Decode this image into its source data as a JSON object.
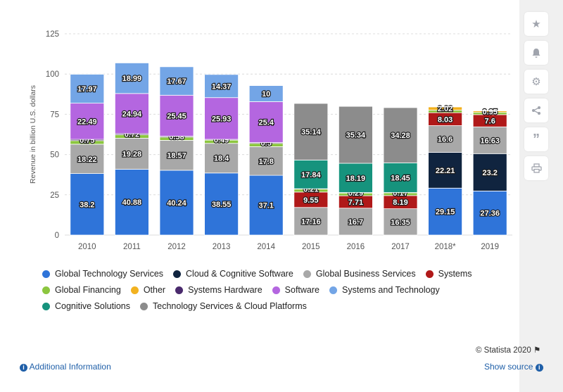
{
  "chart_data": {
    "type": "bar",
    "stacked": true,
    "ylabel": "Revenue in billion U.S. dollars",
    "ylim": [
      0,
      125
    ],
    "yticks": [
      "0",
      "25",
      "50",
      "75",
      "100",
      "125"
    ],
    "grid": true,
    "categories": [
      "2010",
      "2011",
      "2012",
      "2013",
      "2014",
      "2015",
      "2016",
      "2017",
      "2018*",
      "2019"
    ],
    "series": [
      {
        "name": "Global Technology Services",
        "color": "#2f74d9",
        "values": [
          38.2,
          40.88,
          40.24,
          38.55,
          37.1,
          null,
          null,
          null,
          29.15,
          27.36
        ]
      },
      {
        "name": "Cloud & Cognitive Software",
        "color": "#10243f",
        "values": [
          null,
          null,
          null,
          null,
          null,
          null,
          null,
          null,
          22.21,
          23.2
        ]
      },
      {
        "name": "Global Business Services",
        "color": "#a8a8a8",
        "values": [
          18.22,
          19.28,
          18.57,
          18.4,
          17.8,
          17.16,
          16.7,
          16.35,
          16.6,
          16.63
        ]
      },
      {
        "name": "Systems",
        "color": "#b01919",
        "values": [
          null,
          null,
          null,
          null,
          null,
          9.55,
          7.71,
          8.19,
          8.03,
          7.6
        ]
      },
      {
        "name": "Global Financing",
        "color": "#8cc63f",
        "values": [
          2.24,
          2.1,
          2.01,
          1.99,
          2.03,
          1.84,
          1.69,
          1.7,
          1.59,
          1.4
        ]
      },
      {
        "name": "Other",
        "color": "#f2b220",
        "values": [
          null,
          null,
          null,
          null,
          null,
          null,
          null,
          null,
          2.02,
          0.95
        ]
      },
      {
        "name": "Systems Hardware",
        "color": "#4a2a6d",
        "values": [
          0.75,
          0.72,
          0.58,
          0.49,
          0.5,
          0.21,
          0.29,
          0.17,
          0.3,
          0.25
        ]
      },
      {
        "name": "Software",
        "color": "#b466e0",
        "values": [
          22.49,
          24.94,
          25.45,
          25.93,
          25.4,
          null,
          null,
          null,
          null,
          null
        ]
      },
      {
        "name": "Systems and Technology",
        "color": "#73a5e6",
        "values": [
          17.97,
          18.99,
          17.67,
          14.37,
          10,
          null,
          null,
          null,
          null,
          null
        ]
      },
      {
        "name": "Cognitive Solutions",
        "color": "#16937d",
        "values": [
          null,
          null,
          null,
          null,
          null,
          17.84,
          18.19,
          18.45,
          null,
          null
        ]
      },
      {
        "name": "Technology Services & Cloud Platforms",
        "color": "#8c8c8c",
        "values": [
          null,
          null,
          null,
          null,
          null,
          35.14,
          35.34,
          34.28,
          null,
          null
        ]
      }
    ],
    "data_labels": {
      "Global Technology Services": [
        "38.2",
        "40.88",
        "40.24",
        "38.55",
        "37.1",
        null,
        null,
        null,
        "29.15",
        "27.36"
      ],
      "Cloud & Cognitive Software": [
        null,
        null,
        null,
        null,
        null,
        null,
        null,
        null,
        "22.21",
        "23.2"
      ],
      "Global Business Services": [
        "18.22",
        "19.28",
        "18.57",
        "18.4",
        "17.8",
        "17.16",
        "16.7",
        "16.35",
        "16.6",
        "16.63"
      ],
      "Systems": [
        null,
        null,
        null,
        null,
        null,
        "9.55",
        "7.71",
        "8.19",
        "8.03",
        "7.6"
      ],
      "Systems Hardware": [
        "0.75",
        "0.72",
        "0.58",
        "0.49",
        "0.5",
        "0.21",
        "0.29",
        "0.17",
        null,
        null
      ],
      "Other": [
        null,
        null,
        null,
        null,
        null,
        null,
        null,
        null,
        "2.02",
        "0.95"
      ],
      "Software": [
        "22.49",
        "24.94",
        "25.45",
        "25.93",
        "25.4",
        null,
        null,
        null,
        null,
        null
      ],
      "Systems and Technology": [
        "17.97",
        "18.99",
        "17.67",
        "14.37",
        "10",
        null,
        null,
        null,
        null,
        null
      ],
      "Cognitive Solutions": [
        null,
        null,
        null,
        null,
        null,
        "17.84",
        "18.19",
        "18.45",
        null,
        null
      ],
      "Technology Services & Cloud Platforms": [
        null,
        null,
        null,
        null,
        null,
        "35.14",
        "35.34",
        "34.28",
        null,
        null
      ]
    },
    "legend_placement": "bottom",
    "legend_rows": [
      [
        "Global Technology Services",
        "Cloud & Cognitive Software",
        "Global Business Services",
        "Systems"
      ],
      [
        "Global Financing",
        "Other",
        "Systems Hardware",
        "Software",
        "Systems and Technology"
      ],
      [
        "Cognitive Solutions",
        "Technology Services & Cloud Platforms"
      ]
    ]
  },
  "footer": {
    "credit": "© Statista 2020",
    "additional_info": "Additional Information",
    "show_source": "Show source"
  },
  "toolbar": [
    "star-icon",
    "bell-icon",
    "gear-icon",
    "share-icon",
    "quote-icon",
    "print-icon"
  ]
}
